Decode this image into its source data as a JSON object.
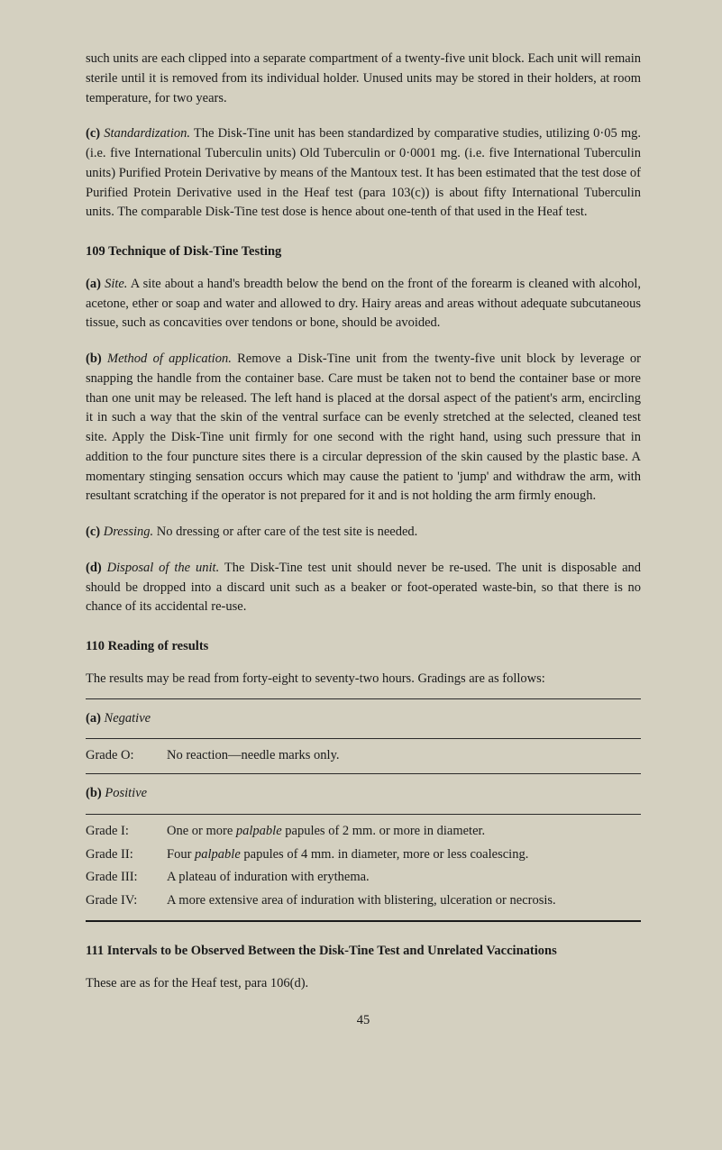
{
  "p1": "such units are each clipped into a separate compartment of a twenty-five unit block. Each unit will remain sterile until it is removed from its individual holder. Unused units may be stored in their holders, at room temperature, for two years.",
  "p2_label": "(c)",
  "p2_italic": "Standardization.",
  "p2_rest": " The Disk-Tine unit has been standardized by comparative studies, utilizing 0·05 mg. (i.e. five International Tuberculin units) Old Tuberculin or 0·0001 mg. (i.e. five International Tuberculin units) Purified Protein Derivative by means of the Mantoux test. It has been estimated that the test dose of Purified Protein Derivative used in the Heaf test (para 103(c)) is about fifty International Tuberculin units. The comparable Disk-Tine test dose is hence about one-tenth of that used in the Heaf test.",
  "h109": "109 Technique of Disk-Tine Testing",
  "p109a_label": "(a)",
  "p109a_italic": "Site.",
  "p109a_rest": " A site about a hand's breadth below the bend on the front of the forearm is cleaned with alcohol, acetone, ether or soap and water and allowed to dry. Hairy areas and areas without adequate subcutaneous tissue, such as concavities over tendons or bone, should be avoided.",
  "p109b_label": "(b)",
  "p109b_italic": "Method of application.",
  "p109b_rest": " Remove a Disk-Tine unit from the twenty-five unit block by leverage or snapping the handle from the container base. Care must be taken not to bend the container base or more than one unit may be released. The left hand is placed at the dorsal aspect of the patient's arm, encircling it in such a way that the skin of the ventral surface can be evenly stretched at the selected, cleaned test site. Apply the Disk-Tine unit firmly for one second with the right hand, using such pressure that in addition to the four puncture sites there is a circular depression of the skin caused by the plastic base. A momentary stinging sensation occurs which may cause the patient to 'jump' and withdraw the arm, with resultant scratching if the operator is not prepared for it and is not holding the arm firmly enough.",
  "p109c_label": "(c)",
  "p109c_italic": "Dressing.",
  "p109c_rest": " No dressing or after care of the test site is needed.",
  "p109d_label": "(d)",
  "p109d_italic": "Disposal of the unit.",
  "p109d_rest": " The Disk-Tine test unit should never be re-used. The unit is disposable and should be dropped into a discard unit such as a beaker or foot-operated waste-bin, so that there is no chance of its accidental re-use.",
  "h110": "110 Reading of results",
  "p110_intro": "The results may be read from forty-eight to seventy-two hours. Gradings are as follows:",
  "neg_label": "(a)",
  "neg_italic": "Negative",
  "gradeO_label": "Grade O:",
  "gradeO_desc": "No reaction—needle marks only.",
  "pos_label": "(b)",
  "pos_italic": "Positive",
  "gradeI_label": "Grade I:",
  "gradeI_pre": "One or more ",
  "gradeI_it": "palpable",
  "gradeI_post": " papules of 2 mm. or more in diameter.",
  "gradeII_label": "Grade II:",
  "gradeII_pre": "Four ",
  "gradeII_it": "palpable",
  "gradeII_post": " papules of 4 mm. in diameter, more or less coalescing.",
  "gradeIII_label": "Grade III:",
  "gradeIII_desc": "A plateau of induration with erythema.",
  "gradeIV_label": "Grade IV:",
  "gradeIV_desc": "A more extensive area of induration with blistering, ulceration or necrosis.",
  "h111": "111 Intervals to be Observed Between the Disk-Tine Test and Unrelated Vaccinations",
  "p111": "These are as for the Heaf test, para 106(d).",
  "page_num": "45"
}
